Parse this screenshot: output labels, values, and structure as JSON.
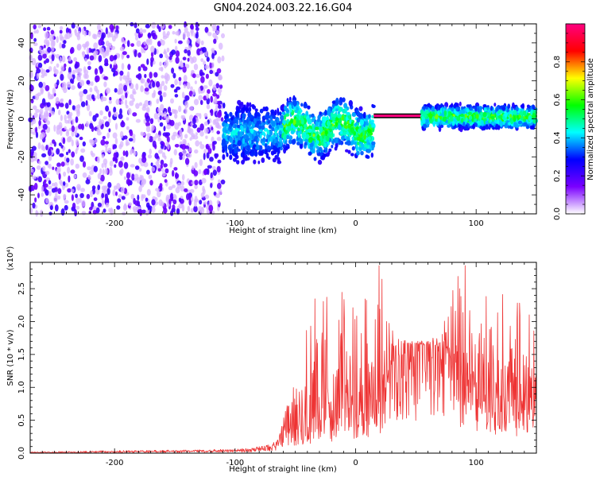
{
  "title": "GN04.2024.003.22.16.G04",
  "chart_data": [
    {
      "type": "heatmap",
      "xlabel": "Height of straight line (km)",
      "ylabel": "Frequency (Hz)",
      "xlim": [
        -270,
        150
      ],
      "ylim": [
        -50,
        50
      ],
      "xticks": [
        -200,
        -100,
        0,
        100
      ],
      "yticks": [
        -40,
        -20,
        0,
        20,
        40
      ],
      "colorbar": {
        "label": "Normalized spectral amplitude",
        "range": [
          0.0,
          1.0
        ],
        "ticks": [
          0.0,
          0.2,
          0.4,
          0.6,
          0.8
        ],
        "tick_labels": [
          "0.0",
          "0.2",
          "0.4",
          "0.6",
          "0.8"
        ],
        "colors": [
          "#ffffff",
          "#7a00ff",
          "#0000ff",
          "#00ffff",
          "#00ff00",
          "#ffff00",
          "#ff0000",
          "#ff0080"
        ]
      },
      "regions": [
        {
          "x_range": [
            -270,
            -110
          ],
          "freq_range": [
            -50,
            50
          ],
          "amplitude": [
            0.02,
            0.1
          ],
          "pattern": "noise"
        },
        {
          "x_range": [
            -110,
            -60
          ],
          "freq_range": [
            -25,
            10
          ],
          "amplitude": [
            0.1,
            0.35
          ],
          "pattern": "band"
        },
        {
          "x_range": [
            -60,
            15
          ],
          "freq_range": [
            -20,
            10
          ],
          "amplitude": [
            0.1,
            0.55
          ],
          "pattern": "wavy-band"
        },
        {
          "x_range": [
            15,
            55
          ],
          "freq_range": [
            0,
            2
          ],
          "amplitude": [
            0.9,
            1.0
          ],
          "pattern": "line"
        },
        {
          "x_range": [
            55,
            150
          ],
          "freq_range": [
            -6,
            8
          ],
          "amplitude": [
            0.1,
            0.55
          ],
          "pattern": "band"
        }
      ],
      "grid": false
    },
    {
      "type": "line",
      "xlabel": "Height of straight line (km)",
      "ylabel": "SNR (10 * v/v)",
      "y_multiplier": "(x10⁴)",
      "xlim": [
        -270,
        150
      ],
      "ylim": [
        0,
        2.9
      ],
      "xticks": [
        -200,
        -100,
        0,
        100
      ],
      "yticks": [
        0.0,
        0.5,
        1.0,
        1.5,
        2.0,
        2.5
      ],
      "ytick_labels": [
        "0.0",
        "0.5",
        "1.0",
        "1.5",
        "2.0",
        "2.5"
      ],
      "color": "#ee3333",
      "x": [
        -270,
        -200,
        -150,
        -100,
        -80,
        -65,
        -55,
        -50,
        -40,
        -30,
        -20,
        -10,
        0,
        10,
        20,
        28,
        32,
        40,
        50,
        60,
        70,
        80,
        90,
        100,
        110,
        120,
        130,
        140,
        150
      ],
      "y": [
        0.01,
        0.02,
        0.03,
        0.04,
        0.06,
        0.12,
        0.35,
        0.3,
        0.45,
        0.6,
        0.55,
        0.7,
        0.75,
        0.8,
        0.9,
        1.2,
        1.55,
        1.66,
        1.65,
        1.64,
        1.6,
        1.4,
        1.2,
        1.1,
        1.0,
        0.9,
        0.85,
        0.8,
        0.8
      ],
      "y_max": [
        0.02,
        0.04,
        0.05,
        0.06,
        0.1,
        0.2,
        0.85,
        1.1,
        2.2,
        2.5,
        2.7,
        2.6,
        2.5,
        2.5,
        2.9,
        2.1,
        1.75,
        1.72,
        1.7,
        1.72,
        1.8,
        2.6,
        2.9,
        2.6,
        2.7,
        2.5,
        2.4,
        2.2,
        2.2
      ],
      "grid": false
    }
  ]
}
